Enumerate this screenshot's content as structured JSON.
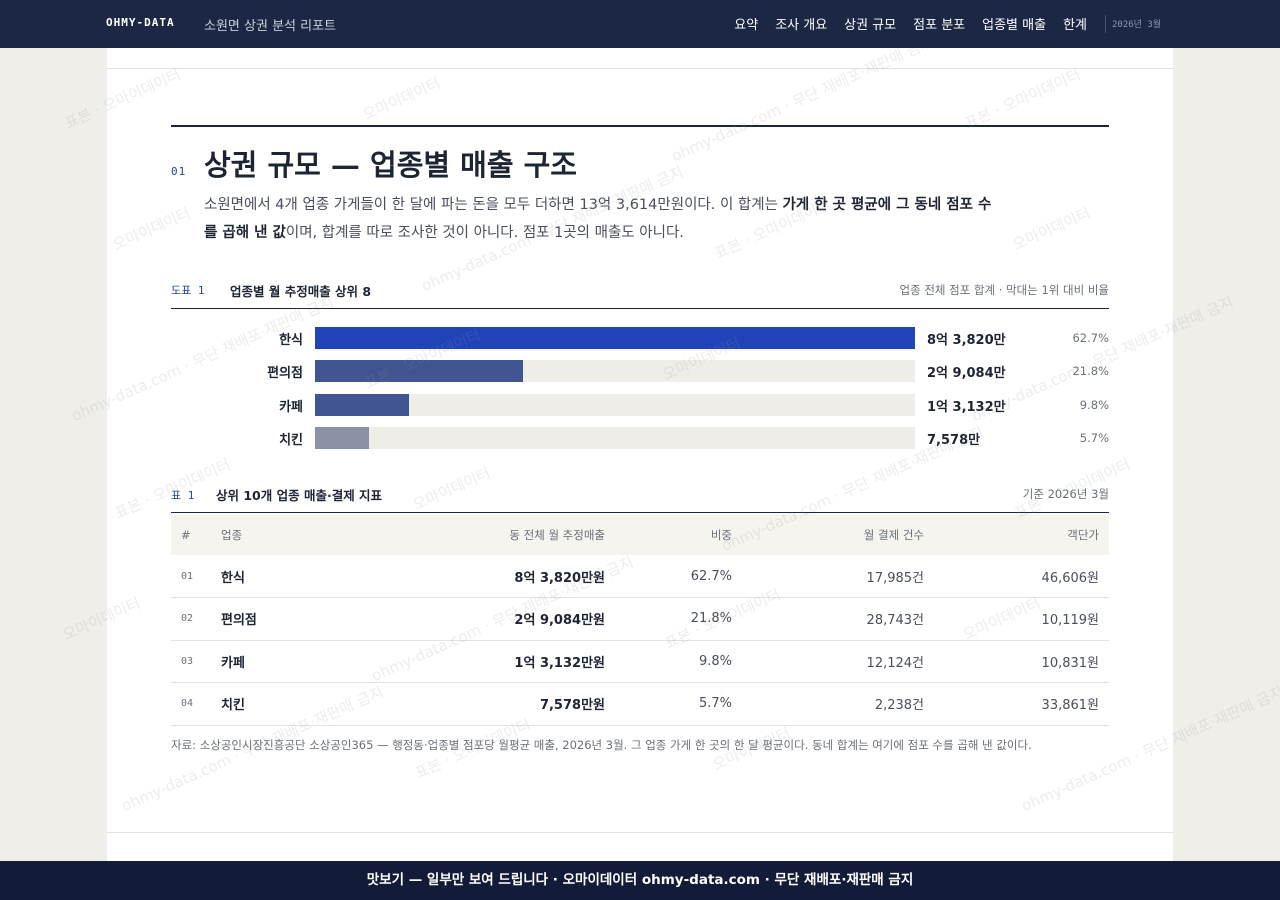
{
  "topbar": {
    "brand": "OHMY-DATA",
    "report_title": "소원면 상권 분석 리포트",
    "nav": [
      "요약",
      "조사 개요",
      "상권 규모",
      "점포 분포",
      "업종별 매출",
      "한계"
    ],
    "date": "2026년 3월"
  },
  "section": {
    "number": "01",
    "title": "상권 규모 — 업종별 매출 구조",
    "lede_1": "소원면에서 4개 업종 가게들이 한 달에 파는 돈을 모두 더하면 13억 3,614만원이다. 이 합계는 ",
    "lede_bold": "가게 한 곳 평균에 그 동네 점포 수를 곱해 낸 값",
    "lede_2": "이며, 합계를 따로 조사한 것이 아니다. 점포 1곳의 매출도 아니다."
  },
  "figure": {
    "tag": "도표 1",
    "title": "업종별 월 추정매출 상위 8",
    "note": "업종 전체 점포 합계 · 막대는 1위 대비 비율"
  },
  "chart_data": {
    "type": "bar",
    "orientation": "horizontal",
    "categories": [
      "한식",
      "편의점",
      "카페",
      "치킨"
    ],
    "values": [
      838200000,
      290840000,
      131320000,
      75780000
    ],
    "value_labels": [
      "8억 3,820만",
      "2억 9,084만",
      "1억 3,132만",
      "7,578만"
    ],
    "shares": [
      "62.7%",
      "21.8%",
      "9.8%",
      "5.7%"
    ],
    "colors": [
      "#1f44b8",
      "#3f5490",
      "#3f5490",
      "#8a93a6"
    ],
    "title": "업종별 월 추정매출 상위 8"
  },
  "table": {
    "tag": "표 1",
    "title": "상위 10개 업종 매출·결제 지표",
    "note": "기준 2026년 3월",
    "columns": [
      "#",
      "업종",
      "동 전체 월 추정매출",
      "비중",
      "월 결제 건수",
      "객단가"
    ],
    "rows": [
      {
        "num": "01",
        "name": "한식",
        "sales": "8억 3,820만원",
        "share": "62.7%",
        "count": "17,985건",
        "price": "46,606원"
      },
      {
        "num": "02",
        "name": "편의점",
        "sales": "2억 9,084만원",
        "share": "21.8%",
        "count": "28,743건",
        "price": "10,119원"
      },
      {
        "num": "03",
        "name": "카페",
        "sales": "1억 3,132만원",
        "share": "9.8%",
        "count": "12,124건",
        "price": "10,831원"
      },
      {
        "num": "04",
        "name": "치킨",
        "sales": "7,578만원",
        "share": "5.7%",
        "count": "2,238건",
        "price": "33,861원"
      }
    ]
  },
  "source": "자료: 소상공인시장진흥공단 소상공인365 — 행정동·업종별 점포당 월평균 매출, 2026년 3월. 그 업종 가게 한 곳의 한 달 평균이다. 동네 합계는 여기에 점포 수를 곱해 낸 값이다.",
  "footer": "맛보기 — 일부만 보여 드립니다 · 오마이데이터 ohmy-data.com · 무단 재배포·재판매 금지",
  "watermarks": [
    "표본 · 오마이데이터",
    "오마이데이터",
    "ohmy-data.com · 무단 재배포·재판매 금지"
  ]
}
